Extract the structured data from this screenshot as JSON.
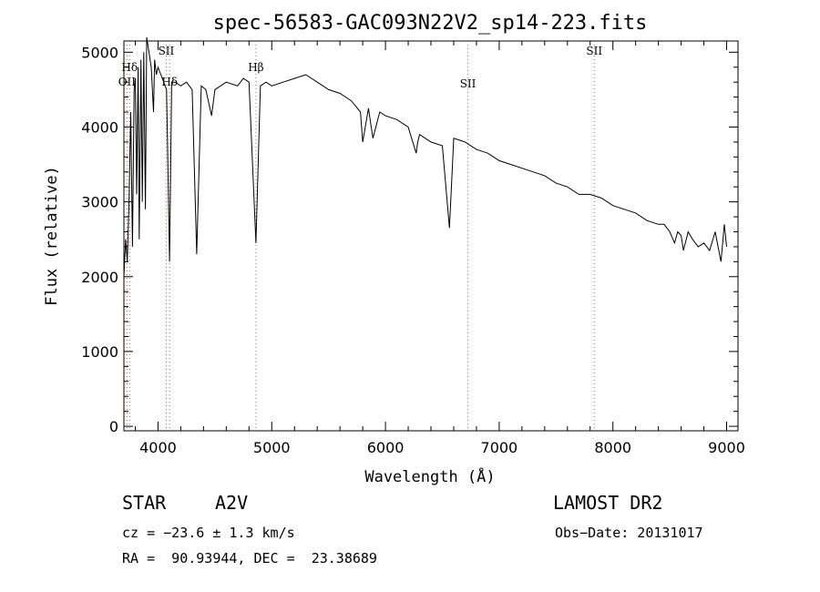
{
  "chart_data": {
    "type": "line",
    "title": "spec-56583-GAC093N22V2_sp14-223.fits",
    "xlabel": "Wavelength (Å)",
    "ylabel": "Flux (relative)",
    "xlim": [
      3700,
      9100
    ],
    "ylim": [
      -60,
      5150
    ],
    "xticks": [
      "4000",
      "5000",
      "6000",
      "7000",
      "8000",
      "9000"
    ],
    "yticks": [
      "0",
      "1000",
      "2000",
      "3000",
      "4000",
      "5000"
    ],
    "grid": false,
    "series": [
      {
        "x": [
          3700,
          3715,
          3730,
          3745,
          3760,
          3775,
          3790,
          3800,
          3812,
          3825,
          3835,
          3850,
          3862,
          3875,
          3889,
          3900,
          3920,
          3940,
          3960,
          3970,
          3985,
          4000,
          4025,
          4050,
          4075,
          4101,
          4120,
          4150,
          4200,
          4250,
          4300,
          4340,
          4380,
          4420,
          4471,
          4500,
          4600,
          4700,
          4750,
          4800,
          4861,
          4900,
          4950,
          5000,
          5100,
          5200,
          5300,
          5400,
          5500,
          5600,
          5700,
          5780,
          5800,
          5850,
          5890,
          5950,
          6000,
          6100,
          6200,
          6270,
          6284,
          6300,
          6400,
          6500,
          6563,
          6600,
          6700,
          6800,
          6900,
          7000,
          7100,
          7200,
          7300,
          7400,
          7500,
          7600,
          7700,
          7800,
          7900,
          8000,
          8100,
          8200,
          8300,
          8400,
          8450,
          8500,
          8542,
          8570,
          8600,
          8620,
          8662,
          8700,
          8750,
          8800,
          8850,
          8900,
          8950,
          8980,
          9000
        ],
        "y": [
          2000,
          2500,
          2200,
          3000,
          4200,
          2400,
          4500,
          4650,
          3100,
          4800,
          2500,
          4900,
          3000,
          5000,
          2900,
          5200,
          5000,
          4800,
          4200,
          4900,
          4700,
          4800,
          4700,
          4600,
          4500,
          2200,
          4600,
          4600,
          4550,
          4600,
          4500,
          2300,
          4550,
          4500,
          4150,
          4500,
          4600,
          4550,
          4650,
          4600,
          2450,
          4550,
          4600,
          4550,
          4600,
          4650,
          4700,
          4600,
          4500,
          4450,
          4350,
          4200,
          3800,
          4250,
          3850,
          4200,
          4150,
          4100,
          4000,
          3650,
          3800,
          3900,
          3800,
          3750,
          2650,
          3850,
          3800,
          3700,
          3650,
          3550,
          3500,
          3450,
          3400,
          3350,
          3250,
          3200,
          3100,
          3100,
          3050,
          2950,
          2900,
          2850,
          2750,
          2700,
          2700,
          2600,
          2450,
          2600,
          2550,
          2350,
          2600,
          2500,
          2400,
          2450,
          2350,
          2600,
          2200,
          2700,
          2400
        ]
      }
    ],
    "line_annotations": [
      {
        "label": "OII",
        "x": 3727,
        "style": "dotted"
      },
      {
        "label": "Hδ",
        "x": 3750,
        "style": "dotted"
      },
      {
        "label": "SII",
        "x": 4072,
        "style": "dotted"
      },
      {
        "label": "Hδ",
        "x": 4102,
        "style": "dotted"
      },
      {
        "label": "Hβ",
        "x": 4861,
        "style": "dotted"
      },
      {
        "label": "SII",
        "x": 6725,
        "style": "dotted"
      },
      {
        "label": "SII",
        "x": 7836,
        "style": "dotted"
      }
    ]
  },
  "info": {
    "class": "STAR",
    "subclass": "A2V",
    "survey": "LAMOST DR2",
    "cz": "cz = −23.6 ± 1.3 km/s",
    "obs_date": "Obs−Date: 20131017",
    "coords": "RA =  90.93944, DEC =  23.38689"
  },
  "colors": {
    "spectrum": "#000000",
    "axes": "#000000",
    "annotation_line": "#cc5555"
  }
}
